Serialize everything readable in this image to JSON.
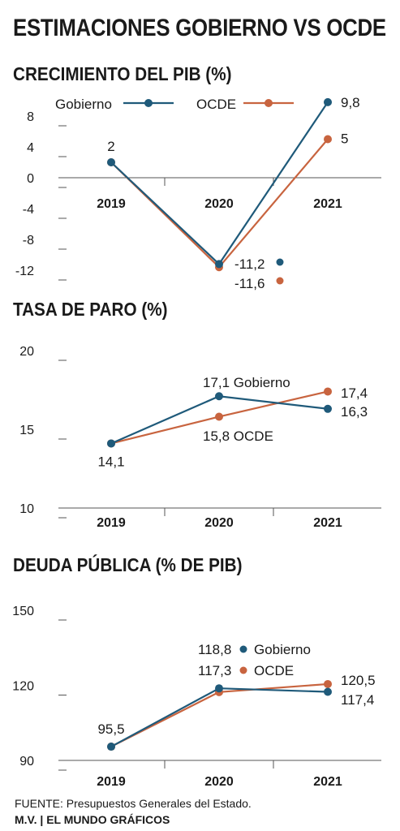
{
  "title": "ESTIMACIONES GOBIERNO VS OCDE",
  "source": "FUENTE: Presupuestos Generales del Estado.",
  "credit": "M.V. | EL MUNDO GRÁFICOS",
  "colors": {
    "gobierno": "#1f5a7a",
    "ocde": "#c8643f",
    "axis": "#555555",
    "text": "#1a1a1a"
  },
  "legend": {
    "gobierno": "Gobierno",
    "ocde": "OCDE"
  },
  "chart_data": [
    {
      "type": "line",
      "title": "CRECIMIENTO DEL PIB (%)",
      "categories": [
        "2019",
        "2020",
        "2021"
      ],
      "y_ticks": [
        "8",
        "4",
        "0",
        "-4",
        "-8",
        "-12"
      ],
      "ylim": [
        -12,
        8
      ],
      "legend_placement": "top",
      "series": [
        {
          "name": "Gobierno",
          "values": [
            2,
            -11.2,
            9.8
          ]
        },
        {
          "name": "OCDE",
          "values": [
            2,
            -11.6,
            5
          ]
        }
      ],
      "labels": {
        "shared_2019": "2",
        "gob_2020": "-11,2",
        "ocde_2020": "-11,6",
        "gob_2021": "9,8",
        "ocde_2021": "5"
      }
    },
    {
      "type": "line",
      "title": "TASA DE PARO (%)",
      "categories": [
        "2019",
        "2020",
        "2021"
      ],
      "y_ticks": [
        "20",
        "15",
        "10"
      ],
      "ylim": [
        10,
        20
      ],
      "series": [
        {
          "name": "Gobierno",
          "values": [
            14.1,
            17.1,
            16.3
          ]
        },
        {
          "name": "OCDE",
          "values": [
            14.1,
            15.8,
            17.4
          ]
        }
      ],
      "labels": {
        "shared_2019": "14,1",
        "gob_2020": "17,1 Gobierno",
        "ocde_2020": "15,8 OCDE",
        "ocde_2021": "17,4",
        "gob_2021": "16,3"
      }
    },
    {
      "type": "line",
      "title": "DEUDA PÚBLICA (% DE PIB)",
      "categories": [
        "2019",
        "2020",
        "2021"
      ],
      "y_ticks": [
        "150",
        "120",
        "90"
      ],
      "ylim": [
        90,
        150
      ],
      "legend_placement": "inline-2020",
      "series": [
        {
          "name": "Gobierno",
          "values": [
            95.5,
            118.8,
            117.4
          ]
        },
        {
          "name": "OCDE",
          "values": [
            95.5,
            117.3,
            120.5
          ]
        }
      ],
      "labels": {
        "shared_2019": "95,5",
        "gob_2020": "118,8",
        "ocde_2020": "117,3",
        "ocde_2021": "120,5",
        "gob_2021": "117,4"
      }
    }
  ]
}
